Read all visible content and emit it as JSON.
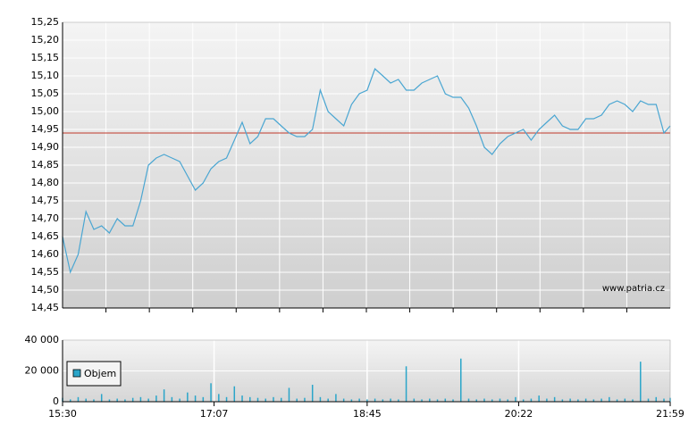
{
  "chart_data": [
    {
      "type": "line",
      "annotation": "www.patria.cz",
      "x": [
        "15:30",
        "15:35",
        "15:40",
        "15:45",
        "15:50",
        "15:55",
        "16:00",
        "16:05",
        "16:10",
        "16:15",
        "16:20",
        "16:25",
        "16:30",
        "16:35",
        "16:40",
        "16:45",
        "16:50",
        "16:55",
        "17:00",
        "17:05",
        "17:10",
        "17:15",
        "17:20",
        "17:25",
        "17:30",
        "17:35",
        "17:40",
        "17:45",
        "17:50",
        "17:55",
        "18:00",
        "18:05",
        "18:10",
        "18:15",
        "18:20",
        "18:25",
        "18:30",
        "18:35",
        "18:40",
        "18:45",
        "18:50",
        "18:55",
        "19:00",
        "19:05",
        "19:10",
        "19:15",
        "19:20",
        "19:25",
        "19:30",
        "19:35",
        "19:40",
        "19:45",
        "19:50",
        "19:55",
        "20:00",
        "20:05",
        "20:10",
        "20:15",
        "20:20",
        "20:25",
        "20:30",
        "20:35",
        "20:40",
        "20:45",
        "20:50",
        "20:55",
        "21:00",
        "21:05",
        "21:10",
        "21:15",
        "21:20",
        "21:25",
        "21:30",
        "21:35",
        "21:40",
        "21:45",
        "21:50",
        "21:55",
        "21:59"
      ],
      "values": [
        14.65,
        14.55,
        14.6,
        14.72,
        14.67,
        14.68,
        14.66,
        14.7,
        14.68,
        14.68,
        14.75,
        14.85,
        14.87,
        14.88,
        14.87,
        14.86,
        14.82,
        14.78,
        14.8,
        14.84,
        14.86,
        14.87,
        14.92,
        14.97,
        14.91,
        14.93,
        14.98,
        14.98,
        14.96,
        14.94,
        14.93,
        14.93,
        14.95,
        15.06,
        15.0,
        14.98,
        14.96,
        15.02,
        15.05,
        15.06,
        15.12,
        15.1,
        15.08,
        15.09,
        15.06,
        15.06,
        15.08,
        15.09,
        15.1,
        15.05,
        15.04,
        15.04,
        15.01,
        14.96,
        14.9,
        14.88,
        14.91,
        14.93,
        14.94,
        14.95,
        14.92,
        14.95,
        14.97,
        14.99,
        14.96,
        14.95,
        14.95,
        14.98,
        14.98,
        14.99,
        15.02,
        15.03,
        15.02,
        15.0,
        15.03,
        15.02,
        15.02,
        14.94,
        14.96
      ],
      "color": "#4aa6d2",
      "reference_line": 14.94,
      "reference_color": "#c0392b",
      "xlim": [
        "15:30",
        "21:59"
      ],
      "ylim": [
        14.45,
        15.25
      ],
      "yticks": [
        {
          "value": 14.45,
          "label": "14,45"
        },
        {
          "value": 14.5,
          "label": "14,50"
        },
        {
          "value": 14.55,
          "label": "14,55"
        },
        {
          "value": 14.6,
          "label": "14,60"
        },
        {
          "value": 14.65,
          "label": "14,65"
        },
        {
          "value": 14.7,
          "label": "14,70"
        },
        {
          "value": 14.75,
          "label": "14,75"
        },
        {
          "value": 14.8,
          "label": "14,80"
        },
        {
          "value": 14.85,
          "label": "14,85"
        },
        {
          "value": 14.9,
          "label": "14,90"
        },
        {
          "value": 14.95,
          "label": "14,95"
        },
        {
          "value": 15.0,
          "label": "15,00"
        },
        {
          "value": 15.05,
          "label": "15,05"
        },
        {
          "value": 15.1,
          "label": "15,10"
        },
        {
          "value": 15.15,
          "label": "15,15"
        },
        {
          "value": 15.2,
          "label": "15,20"
        },
        {
          "value": 15.25,
          "label": "15,25"
        }
      ],
      "grid": true
    },
    {
      "type": "bar",
      "x": [
        "15:30",
        "15:35",
        "15:40",
        "15:45",
        "15:50",
        "15:55",
        "16:00",
        "16:05",
        "16:10",
        "16:15",
        "16:20",
        "16:25",
        "16:30",
        "16:35",
        "16:40",
        "16:45",
        "16:50",
        "16:55",
        "17:00",
        "17:05",
        "17:10",
        "17:15",
        "17:20",
        "17:25",
        "17:30",
        "17:35",
        "17:40",
        "17:45",
        "17:50",
        "17:55",
        "18:00",
        "18:05",
        "18:10",
        "18:15",
        "18:20",
        "18:25",
        "18:30",
        "18:35",
        "18:40",
        "18:45",
        "18:50",
        "18:55",
        "19:00",
        "19:05",
        "19:10",
        "19:15",
        "19:20",
        "19:25",
        "19:30",
        "19:35",
        "19:40",
        "19:45",
        "19:50",
        "19:55",
        "20:00",
        "20:05",
        "20:10",
        "20:15",
        "20:20",
        "20:25",
        "20:30",
        "20:35",
        "20:40",
        "20:45",
        "20:50",
        "20:55",
        "21:00",
        "21:05",
        "21:10",
        "21:15",
        "21:20",
        "21:25",
        "21:30",
        "21:35",
        "21:40",
        "21:45",
        "21:50",
        "21:55",
        "21:59"
      ],
      "series": [
        {
          "name": "Objem",
          "color": "#2aa5c9",
          "values": [
            2500,
            1500,
            3000,
            2000,
            1500,
            5000,
            1500,
            2000,
            1500,
            2500,
            3000,
            2000,
            4000,
            8000,
            3000,
            2000,
            6000,
            4000,
            3000,
            12000,
            5000,
            3000,
            10000,
            4000,
            3000,
            2500,
            2000,
            3000,
            2500,
            9000,
            2000,
            2500,
            11000,
            3000,
            2000,
            5000,
            2000,
            1500,
            2000,
            1500,
            2000,
            1500,
            2000,
            1500,
            23000,
            2000,
            1500,
            2000,
            1500,
            2000,
            1500,
            28000,
            2000,
            1500,
            2000,
            1500,
            2000,
            1500,
            3000,
            1500,
            2000,
            4000,
            2000,
            3000,
            1500,
            2000,
            1500,
            2000,
            1500,
            2000,
            3000,
            1500,
            2000,
            1500,
            26000,
            2000,
            3000,
            2000,
            2500
          ]
        }
      ],
      "xlim": [
        "15:30",
        "21:59"
      ],
      "xticks": [
        "15:30",
        "17:07",
        "18:45",
        "20:22",
        "21:59"
      ],
      "ylim": [
        0,
        40000
      ],
      "yticks": [
        0,
        {
          "value": 20000,
          "label": "20 000"
        },
        {
          "value": 40000,
          "label": "40 000"
        }
      ],
      "legend": "upper left",
      "grid": true
    }
  ]
}
